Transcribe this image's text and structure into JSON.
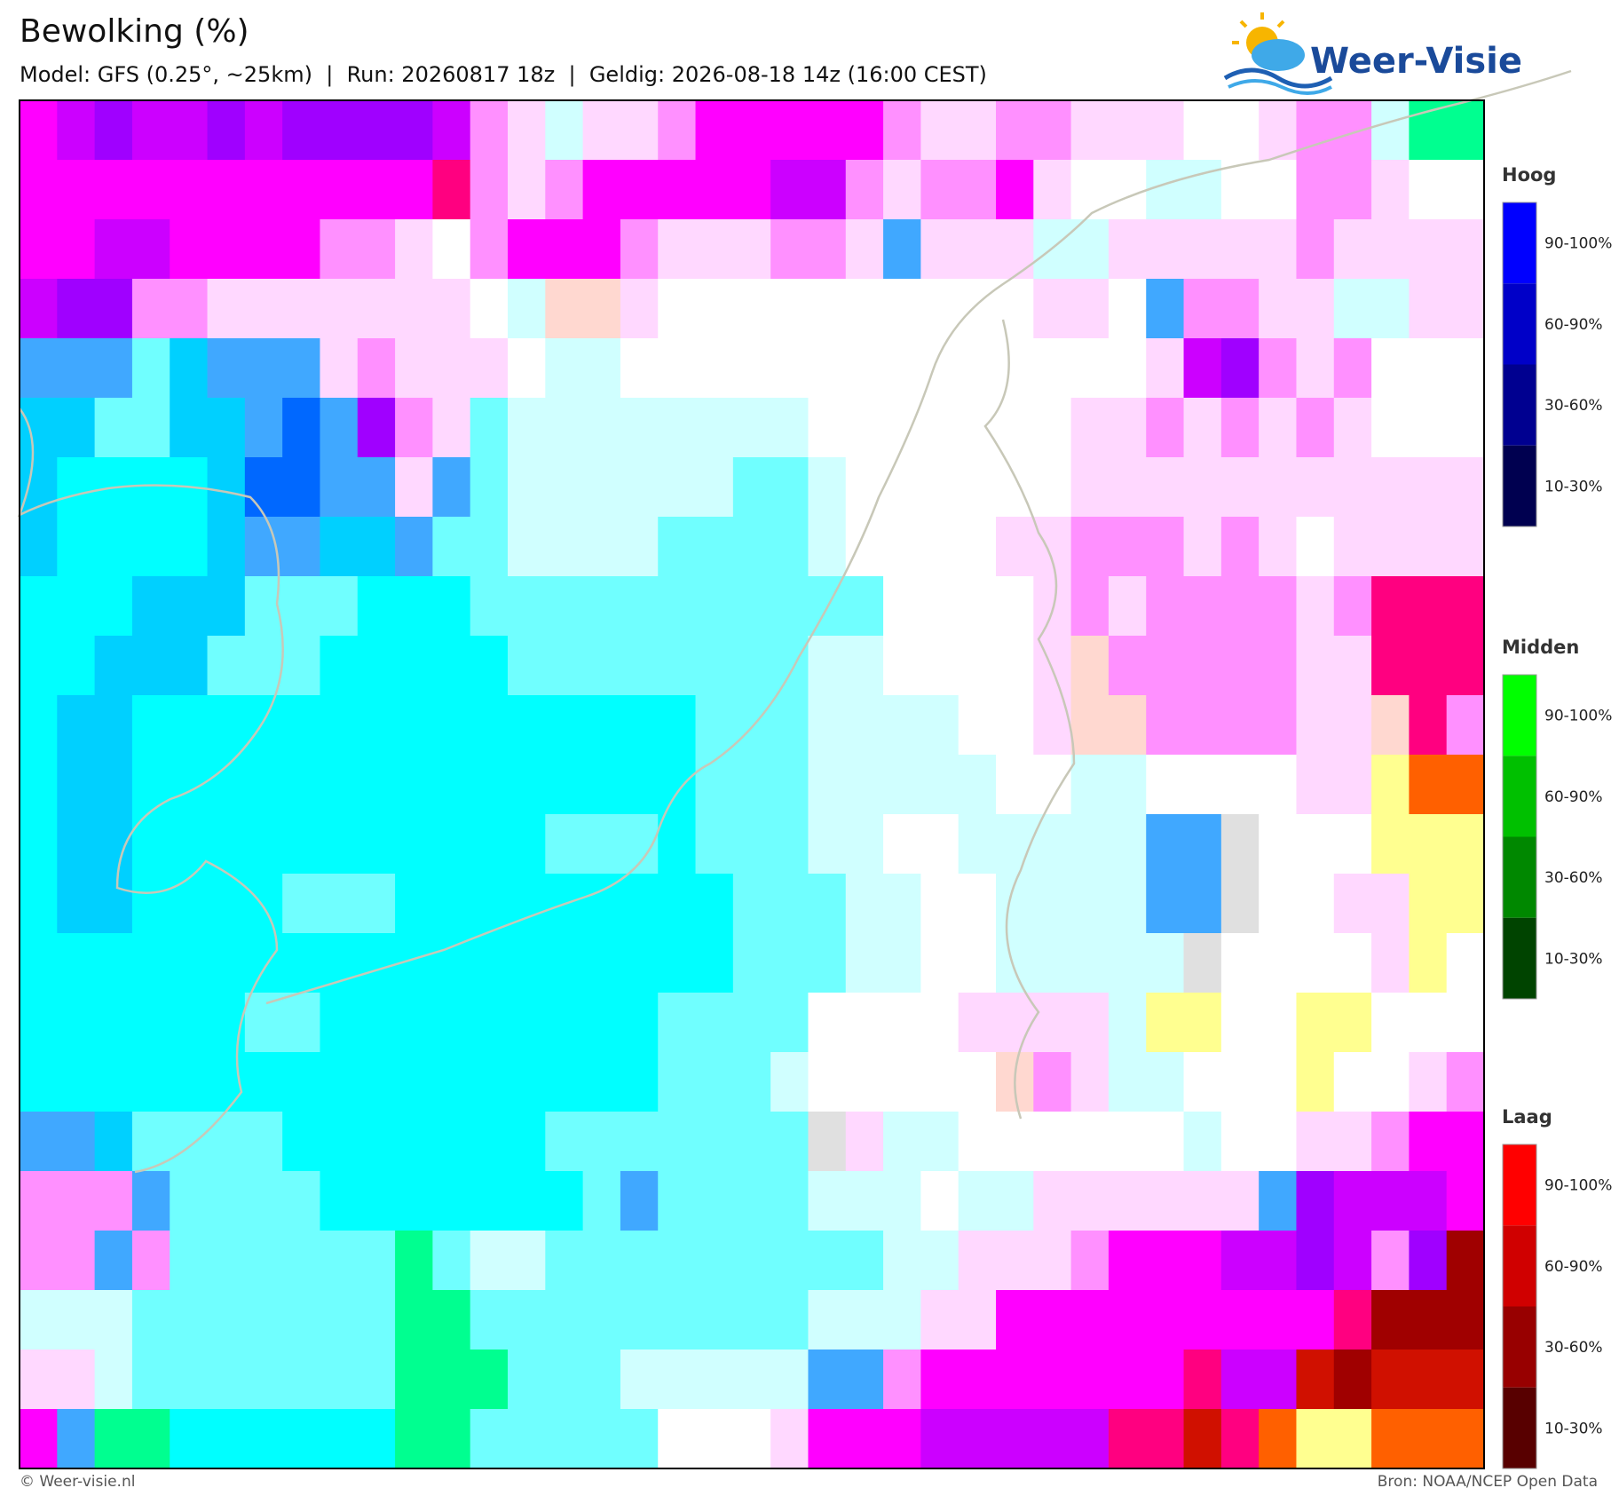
{
  "header": {
    "title": "Bewolking (%)",
    "subtitle": "Model: GFS (0.25°, ~25km)  |  Run: 20260817 18z  |  Geldig: 2026-08-18 14z (16:00 CEST)",
    "logo": "Weer-Visie"
  },
  "legend": [
    {
      "title": "Hoog",
      "labels": [
        "90-100%",
        "60-90%",
        "30-60%",
        "10-30%"
      ],
      "colors": [
        "#0000ff",
        "#0000c8",
        "#000090",
        "#000050"
      ]
    },
    {
      "title": "Midden",
      "labels": [
        "90-100%",
        "60-90%",
        "30-60%",
        "10-30%"
      ],
      "colors": [
        "#00ff00",
        "#00c000",
        "#008800",
        "#004400"
      ]
    },
    {
      "title": "Laag",
      "labels": [
        "90-100%",
        "60-90%",
        "30-60%",
        "10-30%"
      ],
      "colors": [
        "#ff0000",
        "#d00000",
        "#980000",
        "#580000"
      ]
    }
  ],
  "footer": {
    "left": "© Weer-visie.nl",
    "right": "Bron: NOAA/NCEP Open Data"
  }
}
